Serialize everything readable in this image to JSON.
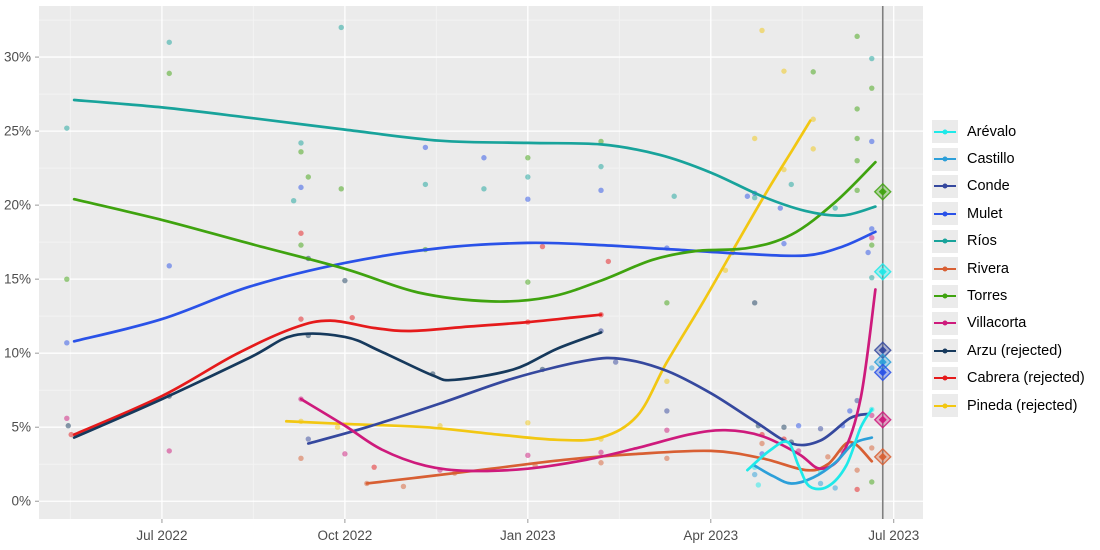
{
  "chart_data": {
    "type": "scatter",
    "description": "Opinion polling trends, smoothed lines with poll scatter points, vertical election-day line with result diamonds",
    "xlabel": "",
    "ylabel": "",
    "grid": "on",
    "legend_position": "right",
    "xlim": [
      2022.332,
      2023.54
    ],
    "ylim": [
      -1.2,
      33.45
    ],
    "x_ticks": [
      {
        "t": 2022.5,
        "label": "Jul 2022"
      },
      {
        "t": 2022.75,
        "label": "Oct 2022"
      },
      {
        "t": 2023.0,
        "label": "Jan 2023"
      },
      {
        "t": 2023.25,
        "label": "Apr 2023"
      },
      {
        "t": 2023.5,
        "label": "Jul 2023"
      }
    ],
    "y_ticks": [
      {
        "v": 0,
        "label": "0%"
      },
      {
        "v": 5,
        "label": "5%"
      },
      {
        "v": 10,
        "label": "10%"
      },
      {
        "v": 15,
        "label": "15%"
      },
      {
        "v": 20,
        "label": "20%"
      },
      {
        "v": 25,
        "label": "25%"
      },
      {
        "v": 30,
        "label": "30%"
      }
    ],
    "election_line_t": 2023.485,
    "series": [
      {
        "key": "ar",
        "name": "Arévalo",
        "color": "#1FE9E9",
        "line": [
          [
            2023.3,
            2.1
          ],
          [
            2023.33,
            3.4
          ],
          [
            2023.355,
            4.0
          ],
          [
            2023.37,
            2.4
          ],
          [
            2023.385,
            1.0
          ],
          [
            2023.41,
            1.0
          ],
          [
            2023.435,
            2.4
          ],
          [
            2023.455,
            5.0
          ],
          [
            2023.47,
            6.2
          ]
        ]
      },
      {
        "key": "ca",
        "name": "Castillo",
        "color": "#2C9FD9",
        "line": [
          [
            2023.31,
            2.4
          ],
          [
            2023.335,
            1.7
          ],
          [
            2023.36,
            1.2
          ],
          [
            2023.39,
            1.6
          ],
          [
            2023.42,
            2.6
          ],
          [
            2023.445,
            3.9
          ],
          [
            2023.47,
            4.3
          ]
        ]
      },
      {
        "key": "co",
        "name": "Conde",
        "color": "#35489E",
        "line": [
          [
            2022.7,
            3.9
          ],
          [
            2022.78,
            5.0
          ],
          [
            2022.88,
            6.6
          ],
          [
            2022.98,
            8.3
          ],
          [
            2023.08,
            9.5
          ],
          [
            2023.13,
            9.6
          ],
          [
            2023.19,
            8.8
          ],
          [
            2023.25,
            7.3
          ],
          [
            2023.31,
            5.4
          ],
          [
            2023.36,
            3.9
          ],
          [
            2023.4,
            4.1
          ],
          [
            2023.44,
            5.6
          ],
          [
            2023.465,
            5.9
          ]
        ]
      },
      {
        "key": "mu",
        "name": "Mulet",
        "color": "#2A52E8",
        "line": [
          [
            2022.38,
            10.8
          ],
          [
            2022.5,
            12.3
          ],
          [
            2022.62,
            14.5
          ],
          [
            2022.75,
            16.1
          ],
          [
            2022.88,
            17.1
          ],
          [
            2023.0,
            17.45
          ],
          [
            2023.1,
            17.3
          ],
          [
            2023.2,
            17.0
          ],
          [
            2023.3,
            16.7
          ],
          [
            2023.38,
            16.6
          ],
          [
            2023.43,
            17.2
          ],
          [
            2023.475,
            18.2
          ]
        ]
      },
      {
        "key": "ri",
        "name": "Ríos",
        "color": "#18A39B",
        "line": [
          [
            2022.38,
            27.1
          ],
          [
            2022.5,
            26.6
          ],
          [
            2022.62,
            25.9
          ],
          [
            2022.75,
            25.1
          ],
          [
            2022.88,
            24.35
          ],
          [
            2023.0,
            24.2
          ],
          [
            2023.1,
            24.1
          ],
          [
            2023.18,
            23.4
          ],
          [
            2023.25,
            22.2
          ],
          [
            2023.32,
            20.6
          ],
          [
            2023.38,
            19.6
          ],
          [
            2023.43,
            19.3
          ],
          [
            2023.475,
            19.9
          ]
        ]
      },
      {
        "key": "rv",
        "name": "Rivera",
        "color": "#D85F33",
        "line": [
          [
            2022.78,
            1.2
          ],
          [
            2022.85,
            1.6
          ],
          [
            2022.95,
            2.2
          ],
          [
            2023.05,
            2.8
          ],
          [
            2023.15,
            3.2
          ],
          [
            2023.25,
            3.4
          ],
          [
            2023.32,
            2.9
          ],
          [
            2023.38,
            2.1
          ],
          [
            2023.41,
            2.5
          ],
          [
            2023.44,
            4.0
          ],
          [
            2023.47,
            2.7
          ]
        ]
      },
      {
        "key": "to",
        "name": "Torres",
        "color": "#3FA30F",
        "line": [
          [
            2022.38,
            20.4
          ],
          [
            2022.5,
            19.0
          ],
          [
            2022.62,
            17.4
          ],
          [
            2022.75,
            15.7
          ],
          [
            2022.85,
            14.1
          ],
          [
            2022.95,
            13.5
          ],
          [
            2023.03,
            13.8
          ],
          [
            2023.1,
            14.9
          ],
          [
            2023.17,
            16.3
          ],
          [
            2023.23,
            16.9
          ],
          [
            2023.3,
            17.1
          ],
          [
            2023.36,
            18.0
          ],
          [
            2023.42,
            20.2
          ],
          [
            2023.475,
            22.9
          ]
        ]
      },
      {
        "key": "vi",
        "name": "Villacorta",
        "color": "#CE1A7C",
        "line": [
          [
            2022.69,
            6.9
          ],
          [
            2022.75,
            5.1
          ],
          [
            2022.8,
            3.5
          ],
          [
            2022.86,
            2.4
          ],
          [
            2022.92,
            2.05
          ],
          [
            2023.0,
            2.2
          ],
          [
            2023.08,
            2.8
          ],
          [
            2023.15,
            3.6
          ],
          [
            2023.22,
            4.5
          ],
          [
            2023.27,
            4.8
          ],
          [
            2023.32,
            4.4
          ],
          [
            2023.37,
            3.2
          ],
          [
            2023.4,
            2.2
          ],
          [
            2023.43,
            3.2
          ],
          [
            2023.455,
            7.0
          ],
          [
            2023.475,
            14.3
          ]
        ]
      },
      {
        "key": "az",
        "name": "Arzu (rejected)",
        "color": "#16395C",
        "line": [
          [
            2022.38,
            4.3
          ],
          [
            2022.5,
            6.9
          ],
          [
            2022.62,
            9.7
          ],
          [
            2022.68,
            11.2
          ],
          [
            2022.75,
            11.1
          ],
          [
            2022.8,
            10.1
          ],
          [
            2022.87,
            8.5
          ],
          [
            2022.9,
            8.2
          ],
          [
            2022.98,
            8.9
          ],
          [
            2023.04,
            10.3
          ],
          [
            2023.1,
            11.4
          ]
        ]
      },
      {
        "key": "cb",
        "name": "Cabrera (rejected)",
        "color": "#E51A1B",
        "line": [
          [
            2022.38,
            4.5
          ],
          [
            2022.5,
            7.1
          ],
          [
            2022.6,
            9.9
          ],
          [
            2022.68,
            11.7
          ],
          [
            2022.73,
            12.2
          ],
          [
            2022.79,
            11.7
          ],
          [
            2022.84,
            11.5
          ],
          [
            2022.92,
            11.8
          ],
          [
            2023.0,
            12.1
          ],
          [
            2023.06,
            12.4
          ],
          [
            2023.1,
            12.6
          ]
        ]
      },
      {
        "key": "pi",
        "name": "Pineda (rejected)",
        "color": "#F2C712",
        "line": [
          [
            2022.67,
            5.4
          ],
          [
            2022.76,
            5.2
          ],
          [
            2022.86,
            5.0
          ],
          [
            2022.96,
            4.5
          ],
          [
            2023.04,
            4.15
          ],
          [
            2023.1,
            4.3
          ],
          [
            2023.15,
            5.8
          ],
          [
            2023.19,
            9.4
          ],
          [
            2023.24,
            13.5
          ],
          [
            2023.29,
            17.8
          ],
          [
            2023.33,
            21.2
          ],
          [
            2023.36,
            23.6
          ],
          [
            2023.386,
            25.7
          ]
        ]
      }
    ],
    "results": [
      {
        "key": "to",
        "pct": 20.9
      },
      {
        "key": "ar",
        "pct": 15.5
      },
      {
        "key": "co",
        "pct": 10.2
      },
      {
        "key": "ca",
        "pct": 9.4
      },
      {
        "key": "mu",
        "pct": 8.7
      },
      {
        "key": "vi",
        "pct": 5.5
      },
      {
        "key": "rv",
        "pct": 3.0
      }
    ],
    "scatter": [
      [
        2022.37,
        25.2,
        "ri"
      ],
      [
        2022.37,
        15.0,
        "to"
      ],
      [
        2022.37,
        10.7,
        "mu"
      ],
      [
        2022.37,
        5.6,
        "vi"
      ],
      [
        2022.372,
        5.1,
        "az"
      ],
      [
        2022.376,
        4.5,
        "cb"
      ],
      [
        2022.51,
        31.0,
        "ri"
      ],
      [
        2022.51,
        28.9,
        "to"
      ],
      [
        2022.51,
        15.9,
        "mu"
      ],
      [
        2022.51,
        7.1,
        "az"
      ],
      [
        2022.51,
        3.4,
        "vi"
      ],
      [
        2022.69,
        24.2,
        "ri"
      ],
      [
        2022.69,
        23.6,
        "to"
      ],
      [
        2022.7,
        21.9,
        "to"
      ],
      [
        2022.69,
        21.2,
        "mu"
      ],
      [
        2022.68,
        20.3,
        "ri"
      ],
      [
        2022.69,
        18.1,
        "cb"
      ],
      [
        2022.69,
        17.3,
        "to"
      ],
      [
        2022.7,
        16.4,
        "az"
      ],
      [
        2022.69,
        12.3,
        "cb"
      ],
      [
        2022.7,
        11.2,
        "az"
      ],
      [
        2022.69,
        6.9,
        "vi"
      ],
      [
        2022.69,
        5.4,
        "pi"
      ],
      [
        2022.7,
        4.2,
        "co"
      ],
      [
        2022.69,
        2.9,
        "rv"
      ],
      [
        2022.745,
        32.0,
        "ri"
      ],
      [
        2022.745,
        21.1,
        "to"
      ],
      [
        2022.75,
        14.9,
        "az"
      ],
      [
        2022.74,
        5.0,
        "pi"
      ],
      [
        2022.75,
        3.2,
        "vi"
      ],
      [
        2022.78,
        1.2,
        "rv"
      ],
      [
        2022.76,
        12.4,
        "cb"
      ],
      [
        2022.79,
        2.3,
        "cb"
      ],
      [
        2022.83,
        1.0,
        "rv"
      ],
      [
        2022.86,
        23.9,
        "mu"
      ],
      [
        2022.94,
        23.2,
        "mu"
      ],
      [
        2022.86,
        21.4,
        "ri"
      ],
      [
        2022.94,
        21.1,
        "ri"
      ],
      [
        2022.86,
        17.0,
        "to"
      ],
      [
        2022.87,
        8.6,
        "az"
      ],
      [
        2022.88,
        5.1,
        "pi"
      ],
      [
        2022.88,
        2.1,
        "vi"
      ],
      [
        2022.9,
        1.9,
        "rv"
      ],
      [
        2023.0,
        23.2,
        "to"
      ],
      [
        2023.0,
        21.9,
        "ri"
      ],
      [
        2023.0,
        20.4,
        "mu"
      ],
      [
        2023.02,
        17.2,
        "cb"
      ],
      [
        2023.0,
        14.8,
        "to"
      ],
      [
        2023.0,
        12.1,
        "cb"
      ],
      [
        2023.02,
        8.9,
        "az"
      ],
      [
        2023.0,
        5.3,
        "pi"
      ],
      [
        2023.0,
        3.1,
        "vi"
      ],
      [
        2023.01,
        2.4,
        "rv"
      ],
      [
        2023.1,
        24.3,
        "to"
      ],
      [
        2023.1,
        22.6,
        "ri"
      ],
      [
        2023.1,
        21.0,
        "mu"
      ],
      [
        2023.11,
        16.2,
        "cb"
      ],
      [
        2023.1,
        12.6,
        "cb"
      ],
      [
        2023.1,
        11.5,
        "co"
      ],
      [
        2023.12,
        9.4,
        "co"
      ],
      [
        2023.1,
        4.2,
        "pi"
      ],
      [
        2023.1,
        3.3,
        "vi"
      ],
      [
        2023.1,
        2.6,
        "rv"
      ],
      [
        2023.19,
        17.1,
        "mu"
      ],
      [
        2023.19,
        13.4,
        "to"
      ],
      [
        2023.19,
        8.1,
        "pi"
      ],
      [
        2023.19,
        4.8,
        "vi"
      ],
      [
        2023.19,
        2.9,
        "rv"
      ],
      [
        2023.19,
        6.1,
        "co"
      ],
      [
        2023.2,
        20.6,
        "ri"
      ],
      [
        2023.27,
        15.6,
        "pi"
      ],
      [
        2023.28,
        16.8,
        "to"
      ],
      [
        2023.3,
        20.6,
        "mu"
      ],
      [
        2023.31,
        20.8,
        "mu"
      ],
      [
        2023.31,
        20.5,
        "ri"
      ],
      [
        2023.32,
        31.8,
        "pi"
      ],
      [
        2023.31,
        24.5,
        "pi"
      ],
      [
        2023.31,
        13.4,
        "az"
      ],
      [
        2023.315,
        5.1,
        "az"
      ],
      [
        2023.32,
        4.5,
        "cb"
      ],
      [
        2023.32,
        3.9,
        "rv"
      ],
      [
        2023.32,
        3.2,
        "mu"
      ],
      [
        2023.31,
        2.3,
        "ar"
      ],
      [
        2023.31,
        1.8,
        "ca"
      ],
      [
        2023.315,
        1.1,
        "ar"
      ],
      [
        2023.35,
        29.05,
        "pi"
      ],
      [
        2023.35,
        22.4,
        "pi"
      ],
      [
        2023.345,
        19.8,
        "mu"
      ],
      [
        2023.36,
        21.4,
        "ri"
      ],
      [
        2023.35,
        17.4,
        "mu"
      ],
      [
        2023.35,
        5.0,
        "az"
      ],
      [
        2023.35,
        4.2,
        "cb"
      ],
      [
        2023.36,
        4.0,
        "az"
      ],
      [
        2023.37,
        5.1,
        "mu"
      ],
      [
        2023.37,
        3.4,
        "vi"
      ],
      [
        2023.39,
        29.0,
        "to"
      ],
      [
        2023.39,
        25.8,
        "pi"
      ],
      [
        2023.39,
        23.8,
        "pi"
      ],
      [
        2023.4,
        2.0,
        "ar"
      ],
      [
        2023.4,
        1.2,
        "ca"
      ],
      [
        2023.41,
        3.0,
        "rv"
      ],
      [
        2023.4,
        4.9,
        "co"
      ],
      [
        2023.42,
        19.8,
        "ri"
      ],
      [
        2023.43,
        5.1,
        "mu"
      ],
      [
        2023.43,
        3.4,
        "vi"
      ],
      [
        2023.42,
        0.9,
        "ca"
      ],
      [
        2023.45,
        31.4,
        "to"
      ],
      [
        2023.45,
        26.5,
        "to"
      ],
      [
        2023.45,
        24.5,
        "to"
      ],
      [
        2023.45,
        23.0,
        "to"
      ],
      [
        2023.45,
        21.0,
        "to"
      ],
      [
        2023.45,
        6.8,
        "co"
      ],
      [
        2023.44,
        6.1,
        "mu"
      ],
      [
        2023.45,
        2.1,
        "rv"
      ],
      [
        2023.45,
        0.8,
        "cb"
      ],
      [
        2023.47,
        29.9,
        "ri"
      ],
      [
        2023.47,
        27.9,
        "to"
      ],
      [
        2023.47,
        24.3,
        "mu"
      ],
      [
        2023.47,
        18.4,
        "mu"
      ],
      [
        2023.47,
        17.8,
        "vi"
      ],
      [
        2023.47,
        17.3,
        "to"
      ],
      [
        2023.465,
        16.8,
        "mu"
      ],
      [
        2023.47,
        15.1,
        "ri"
      ],
      [
        2023.47,
        9.0,
        "ca"
      ],
      [
        2023.47,
        6.2,
        "ar"
      ],
      [
        2023.47,
        5.8,
        "vi"
      ],
      [
        2023.47,
        3.6,
        "rv"
      ],
      [
        2023.47,
        1.3,
        "to"
      ]
    ],
    "style": {
      "panel_bg": "#ebebeb",
      "major_grid": "#ffffff",
      "minor_grid": "#f3f3f3",
      "axis_text": "#4d4d4d",
      "election_line": "#7f7f7f",
      "outer_bg": "#ffffff"
    }
  },
  "legend": {
    "items": [
      {
        "label": "Arévalo",
        "key": "ar"
      },
      {
        "label": "Castillo",
        "key": "ca"
      },
      {
        "label": "Conde",
        "key": "co"
      },
      {
        "label": "Mulet",
        "key": "mu"
      },
      {
        "label": "Ríos",
        "key": "ri"
      },
      {
        "label": "Rivera",
        "key": "rv"
      },
      {
        "label": "Torres",
        "key": "to"
      },
      {
        "label": "Villacorta",
        "key": "vi"
      },
      {
        "label": "Arzu (rejected)",
        "key": "az"
      },
      {
        "label": "Cabrera (rejected)",
        "key": "cb"
      },
      {
        "label": "Pineda (rejected)",
        "key": "pi"
      }
    ]
  }
}
